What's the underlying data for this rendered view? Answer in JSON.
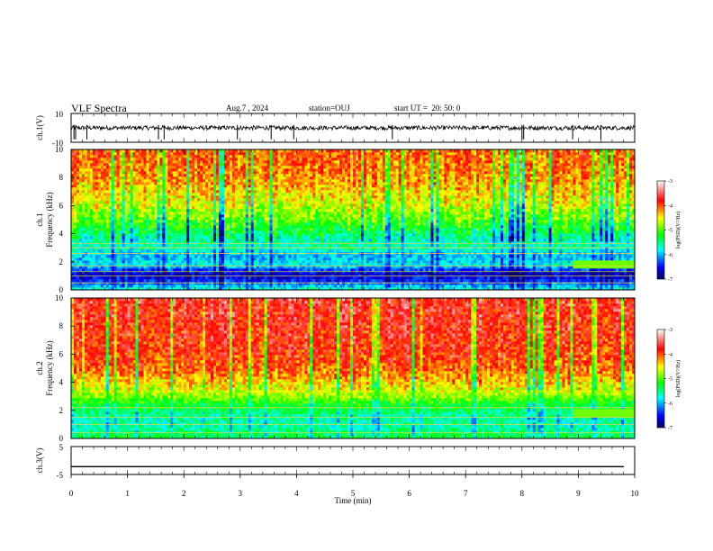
{
  "header": {
    "title": "VLF Spectra",
    "date": "Aug.7 , 2024",
    "station": "station=OUJ",
    "start": "start UT =  20: 50: 0"
  },
  "chart_data": [
    {
      "type": "line",
      "panel": "ch1-waveform",
      "ylabel": "ch.1(V)",
      "ylim": [
        -10,
        10
      ],
      "yticks": [
        "10",
        "-10"
      ],
      "baseline": 0,
      "noise_amplitude": 1.5,
      "spikes_t": [
        0.05,
        0.08,
        0.28,
        1.55,
        1.65,
        2.95,
        3.55,
        3.95,
        5.7,
        8.0,
        8.03,
        8.9,
        9.4
      ]
    },
    {
      "type": "heatmap",
      "panel": "ch1-spectrogram",
      "xlim": [
        0,
        10
      ],
      "ylim": [
        0,
        10
      ],
      "xlabel": "",
      "ylabel": "ch.1 Frequency (kHz)",
      "yticks": [
        "0",
        "2",
        "4",
        "6",
        "8",
        "10"
      ],
      "colorbar": {
        "label": "log(PSD)(V²/Hz)",
        "ticks": [
          "-3",
          "-4",
          "-5",
          "-6",
          "-7"
        ],
        "range": [
          -7,
          -3
        ]
      },
      "bands_khz": [
        0.5,
        1.0,
        1.3,
        1.7,
        2.6,
        3.0,
        3.3
      ],
      "profile_log_psd": [
        {
          "f": 0,
          "v": -5.6
        },
        {
          "f": 0.6,
          "v": -6.4
        },
        {
          "f": 1.2,
          "v": -6.7
        },
        {
          "f": 1.8,
          "v": -5.8
        },
        {
          "f": 2.5,
          "v": -6.0
        },
        {
          "f": 3.0,
          "v": -5.6
        },
        {
          "f": 3.6,
          "v": -5.6
        },
        {
          "f": 4.5,
          "v": -5.2
        },
        {
          "f": 5.5,
          "v": -4.8
        },
        {
          "f": 6.5,
          "v": -4.5
        },
        {
          "f": 8.0,
          "v": -4.2
        },
        {
          "f": 10,
          "v": -4.0
        }
      ]
    },
    {
      "type": "heatmap",
      "panel": "ch2-spectrogram",
      "xlim": [
        0,
        10
      ],
      "ylim": [
        0,
        10
      ],
      "xlabel": "",
      "ylabel": "ch.2 Frequency (kHz)",
      "yticks": [
        "0",
        "2",
        "4",
        "6",
        "8",
        "10"
      ],
      "colorbar": {
        "label": "log(PSD)(V²/Hz)",
        "ticks": [
          "-3",
          "-4",
          "-5",
          "-6",
          "-7"
        ],
        "range": [
          -7,
          -3
        ]
      },
      "bands_khz": [
        0.4,
        1.0,
        1.5,
        2.2
      ],
      "profile_log_psd": [
        {
          "f": 0,
          "v": -5.3
        },
        {
          "f": 0.8,
          "v": -5.6
        },
        {
          "f": 1.5,
          "v": -5.6
        },
        {
          "f": 2.5,
          "v": -5.2
        },
        {
          "f": 3.2,
          "v": -4.7
        },
        {
          "f": 4.0,
          "v": -4.4
        },
        {
          "f": 5.0,
          "v": -4.0
        },
        {
          "f": 7.0,
          "v": -3.8
        },
        {
          "f": 10,
          "v": -3.7
        }
      ]
    },
    {
      "type": "line",
      "panel": "ch3-waveform",
      "xlim": [
        0,
        10
      ],
      "xlabel": "Time (min)",
      "xticks": [
        "0",
        "1",
        "2",
        "3",
        "4",
        "5",
        "6",
        "7",
        "8",
        "9",
        "10"
      ],
      "ylabel": "ch.3(V)",
      "ylim": [
        -5,
        5
      ],
      "yticks": [
        "5",
        "-5"
      ],
      "level": -2.2
    }
  ]
}
